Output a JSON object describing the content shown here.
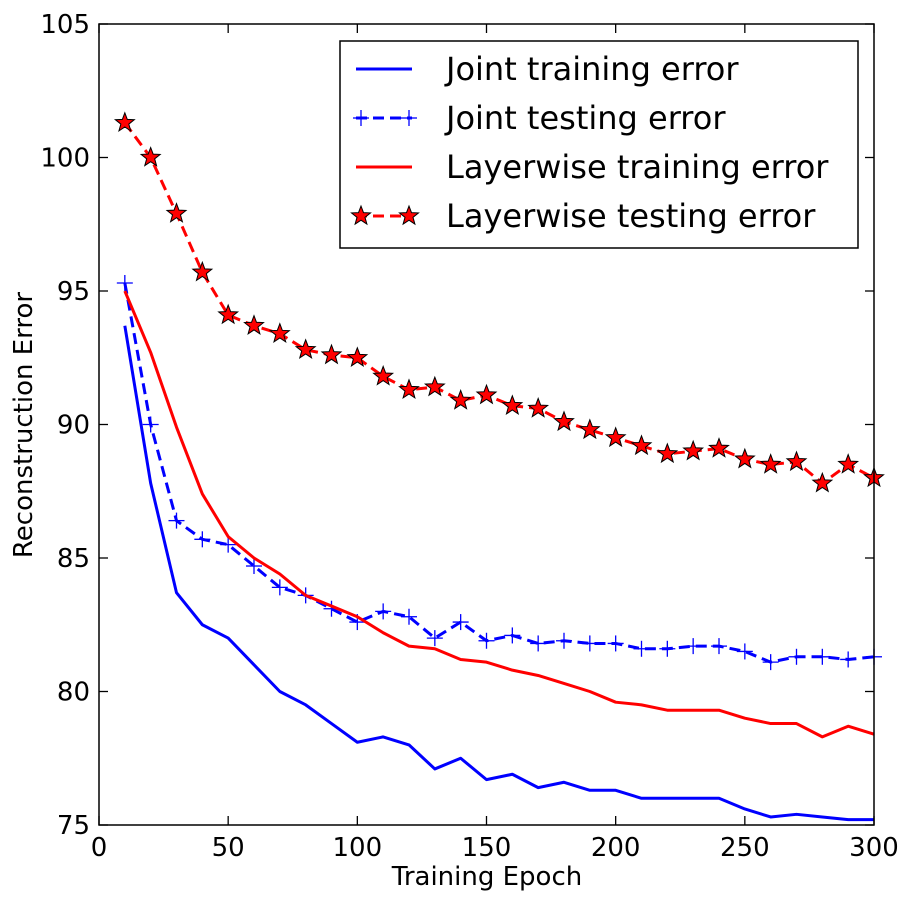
{
  "chart_data": {
    "type": "line",
    "title": "",
    "xlabel": "Training Epoch",
    "ylabel": "Reconstruction Error",
    "xlim": [
      0,
      300
    ],
    "ylim": [
      75,
      105
    ],
    "xticks": [
      0,
      50,
      100,
      150,
      200,
      250,
      300
    ],
    "yticks": [
      75,
      80,
      85,
      90,
      95,
      100,
      105
    ],
    "grid": false,
    "legend_position": "top-right",
    "x": [
      10,
      20,
      30,
      40,
      50,
      60,
      70,
      80,
      90,
      100,
      110,
      120,
      130,
      140,
      150,
      160,
      170,
      180,
      190,
      200,
      210,
      220,
      230,
      240,
      250,
      260,
      270,
      280,
      290,
      300
    ],
    "series": [
      {
        "name": "Joint training error",
        "color": "#0000ff",
        "style": "solid",
        "marker": "none",
        "values": [
          93.7,
          87.8,
          83.7,
          82.5,
          82.0,
          81.0,
          80.0,
          79.5,
          78.8,
          78.1,
          78.3,
          78.0,
          77.1,
          77.5,
          76.7,
          76.9,
          76.4,
          76.6,
          76.3,
          76.3,
          76.0,
          76.0,
          76.0,
          76.0,
          75.6,
          75.3,
          75.4,
          75.3,
          75.2,
          75.2
        ]
      },
      {
        "name": "Joint testing error",
        "color": "#0000ff",
        "style": "dashed",
        "marker": "plus",
        "values": [
          95.3,
          90.0,
          86.4,
          85.7,
          85.5,
          84.7,
          83.9,
          83.6,
          83.1,
          82.6,
          83.0,
          82.8,
          82.0,
          82.6,
          81.9,
          82.1,
          81.8,
          81.9,
          81.8,
          81.8,
          81.6,
          81.6,
          81.7,
          81.7,
          81.5,
          81.1,
          81.3,
          81.3,
          81.2,
          81.3
        ]
      },
      {
        "name": "Layerwise training error",
        "color": "#ff0000",
        "style": "solid",
        "marker": "none",
        "values": [
          95.0,
          92.7,
          89.9,
          87.4,
          85.8,
          85.0,
          84.4,
          83.6,
          83.2,
          82.8,
          82.2,
          81.7,
          81.6,
          81.2,
          81.1,
          80.8,
          80.6,
          80.3,
          80.0,
          79.6,
          79.5,
          79.3,
          79.3,
          79.3,
          79.0,
          78.8,
          78.8,
          78.3,
          78.7,
          78.4
        ]
      },
      {
        "name": "Layerwise testing error",
        "color": "#ff0000",
        "style": "dashed",
        "marker": "star",
        "values": [
          101.3,
          100.0,
          97.9,
          95.7,
          94.1,
          93.7,
          93.4,
          92.8,
          92.6,
          92.5,
          91.8,
          91.3,
          91.4,
          90.9,
          91.1,
          90.7,
          90.6,
          90.1,
          89.8,
          89.5,
          89.2,
          88.9,
          89.0,
          89.1,
          88.7,
          88.5,
          88.6,
          87.8,
          88.5,
          88.0
        ]
      }
    ]
  }
}
